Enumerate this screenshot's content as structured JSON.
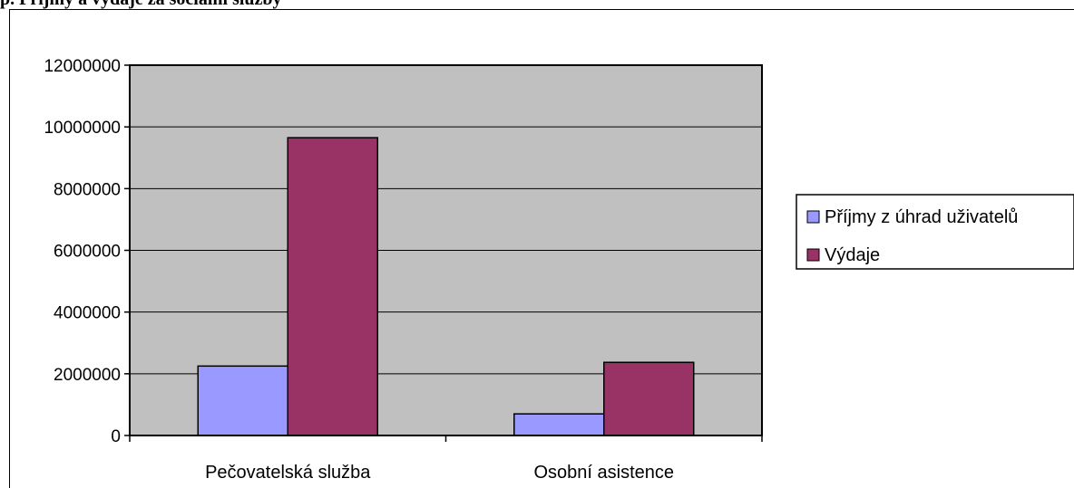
{
  "page": {
    "heading": "p. Příjmy a výdaje za sociální služby"
  },
  "chart_data": {
    "type": "bar",
    "title": "",
    "xlabel": "",
    "ylabel": "",
    "categories": [
      "Pečovatelská služba",
      "Osobní asistence"
    ],
    "series": [
      {
        "name": "Příjmy z úhrad uživatelů",
        "values": [
          2250000,
          700000
        ],
        "color": "#9999ff"
      },
      {
        "name": "Výdaje",
        "values": [
          9650000,
          2370000
        ],
        "color": "#993366"
      }
    ],
    "ylim": [
      0,
      12000000
    ],
    "yticks": [
      "0",
      "2000000",
      "4000000",
      "6000000",
      "8000000",
      "10000000",
      "12000000"
    ],
    "plot_background": "#c0c0c0",
    "grid": true,
    "legend": "right"
  }
}
